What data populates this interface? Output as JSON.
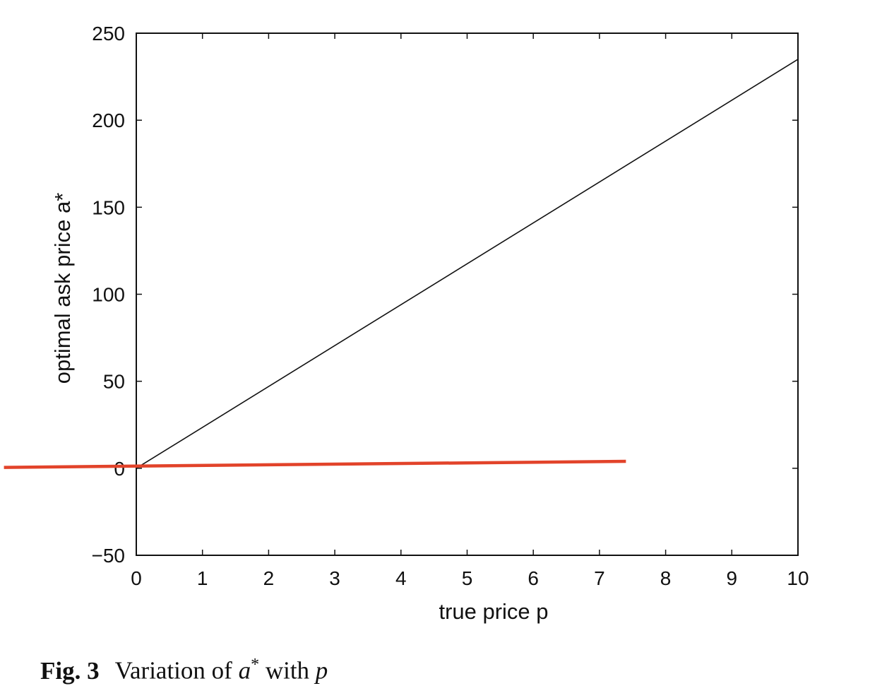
{
  "chart_data": {
    "type": "line",
    "xlabel": "true price p",
    "ylabel": "optimal ask price a*",
    "xlim": [
      0,
      10
    ],
    "ylim": [
      -50,
      250
    ],
    "xticks": [
      0,
      1,
      2,
      3,
      4,
      5,
      6,
      7,
      8,
      9,
      10
    ],
    "yticks": [
      -50,
      0,
      50,
      100,
      150,
      200,
      250
    ],
    "ytick_labels": [
      "−50",
      "0",
      "50",
      "100",
      "150",
      "200",
      "250"
    ],
    "grid": false,
    "series": [
      {
        "color": "#111111",
        "x": [
          0,
          10
        ],
        "y": [
          0,
          235
        ]
      }
    ],
    "annotations": [
      {
        "kind": "overlay-line",
        "color": "#e2432a",
        "x": [
          -2.0,
          7.4
        ],
        "y": [
          0.5,
          4.0
        ]
      }
    ]
  },
  "caption": {
    "label": "Fig. 3",
    "text_before": "Variation of ",
    "symbol_a": "a",
    "superscript": "*",
    "text_middle": " with ",
    "symbol_p": "p"
  }
}
